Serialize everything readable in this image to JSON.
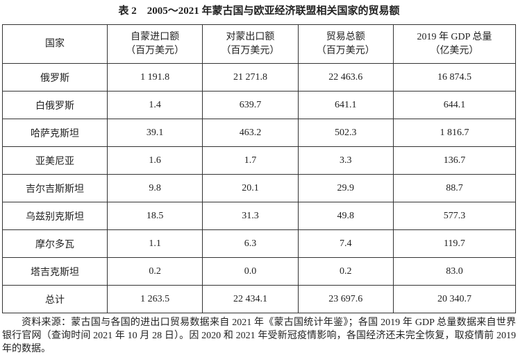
{
  "title": "表 2　2005～2021 年蒙古国与欧亚经济联盟相关国家的贸易额",
  "table": {
    "header": [
      {
        "label": "国家"
      },
      {
        "label": "自蒙进口额",
        "unit": "（百万美元）"
      },
      {
        "label": "对蒙出口额",
        "unit": "（百万美元）"
      },
      {
        "label": "贸易总额",
        "unit": "（百万美元）"
      },
      {
        "label": "2019 年 GDP 总量",
        "unit": "（亿美元）"
      }
    ],
    "rows": [
      [
        "俄罗斯",
        "1 191.8",
        "21 271.8",
        "22 463.6",
        "16 874.5"
      ],
      [
        "白俄罗斯",
        "1.4",
        "639.7",
        "641.1",
        "644.1"
      ],
      [
        "哈萨克斯坦",
        "39.1",
        "463.2",
        "502.3",
        "1 816.7"
      ],
      [
        "亚美尼亚",
        "1.6",
        "1.7",
        "3.3",
        "136.7"
      ],
      [
        "吉尔吉斯斯坦",
        "9.8",
        "20.1",
        "29.9",
        "88.7"
      ],
      [
        "乌兹别克斯坦",
        "18.5",
        "31.3",
        "49.8",
        "577.3"
      ],
      [
        "摩尔多瓦",
        "1.1",
        "6.3",
        "7.4",
        "119.7"
      ],
      [
        "塔吉克斯坦",
        "0.2",
        "0.0",
        "0.2",
        "83.0"
      ],
      [
        "总计",
        "1 263.5",
        "22 434.1",
        "23 697.6",
        "20 340.7"
      ]
    ]
  },
  "note": "资料来源：蒙古国与各国的进出口贸易数据来自 2021 年《蒙古国统计年鉴》；各国 2019 年 GDP 总量数据来自世界银行官网（查询时间 2021 年 10 月 28 日）。因 2020 和 2021 年受新冠疫情影响，各国经济还未完全恢复，取疫情前 2019 年的数据。"
}
